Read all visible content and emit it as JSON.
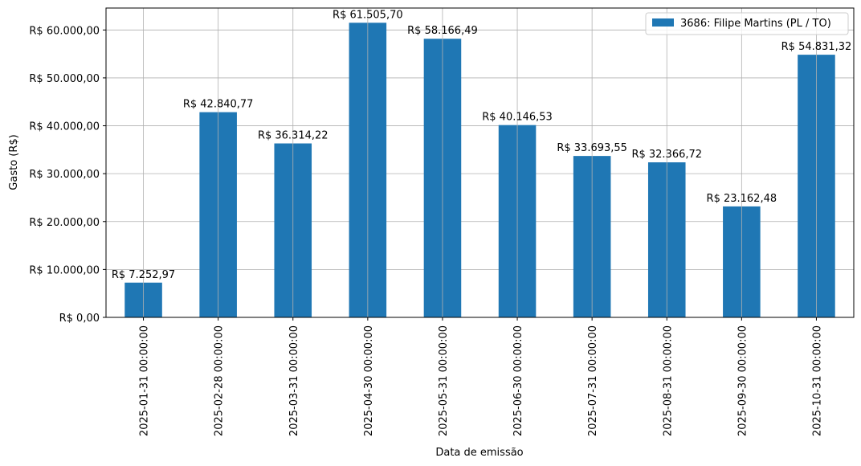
{
  "chart_data": {
    "type": "bar",
    "categories": [
      "2025-01-31 00:00:00",
      "2025-02-28 00:00:00",
      "2025-03-31 00:00:00",
      "2025-04-30 00:00:00",
      "2025-05-31 00:00:00",
      "2025-06-30 00:00:00",
      "2025-07-31 00:00:00",
      "2025-08-31 00:00:00",
      "2025-09-30 00:00:00",
      "2025-10-31 00:00:00"
    ],
    "series": [
      {
        "name": "3686: Filipe Martins (PL / TO)",
        "color": "#1f77b4",
        "values": [
          7252.97,
          42840.77,
          36314.22,
          61505.7,
          58166.49,
          40146.53,
          33693.55,
          32366.72,
          23162.48,
          54831.32
        ]
      }
    ],
    "data_labels": [
      "R$ 7.252,97",
      "R$ 42.840,77",
      "R$ 36.314,22",
      "R$ 61.505,70",
      "R$ 58.166,49",
      "R$ 40.146,53",
      "R$ 33.693,55",
      "R$ 32.366,72",
      "R$ 23.162,48",
      "R$ 54.831,32"
    ],
    "title": "",
    "xlabel": "Data de emissão",
    "ylabel": "Gasto (R$)",
    "ylim": [
      0,
      64581
    ],
    "yticks": [
      0,
      10000,
      20000,
      30000,
      40000,
      50000,
      60000
    ],
    "ytick_labels": [
      "R$ 0,00",
      "R$ 10.000,00",
      "R$ 20.000,00",
      "R$ 30.000,00",
      "R$ 40.000,00",
      "R$ 50.000,00",
      "R$ 60.000,00"
    ],
    "grid": true,
    "legend_position": "top-right"
  }
}
